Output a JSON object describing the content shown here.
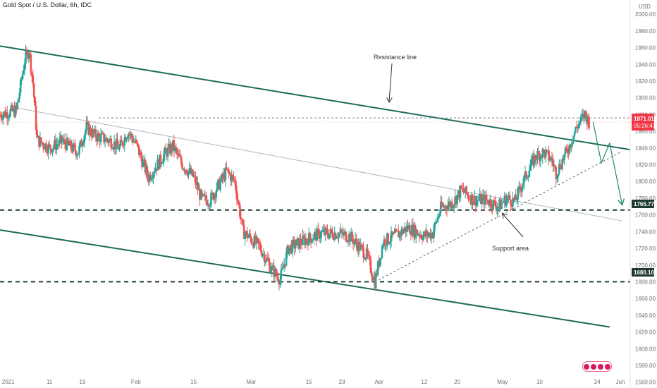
{
  "header": {
    "title": "Gold Spot / U.S. Dollar, 6h, IDC"
  },
  "axis": {
    "currency": "USD",
    "y_ticks": [
      1560,
      1580,
      1600,
      1620,
      1640,
      1660,
      1680,
      1700,
      1720,
      1740,
      1760,
      1780,
      1800,
      1820,
      1840,
      1860,
      1880,
      1900,
      1920,
      1940,
      1960,
      1980,
      2000
    ],
    "x_ticks": [
      "2021",
      "11",
      "19",
      "Feb",
      "15",
      "Mar",
      "15",
      "23",
      "Apr",
      "12",
      "20",
      "May",
      "10",
      "24",
      "Jun"
    ]
  },
  "annotations": {
    "resistance": "Resistance line",
    "support": "Support area"
  },
  "price_labels": {
    "current": "1871.01",
    "countdown": "05:26:41",
    "level1": "1765.77",
    "level2": "1680.10"
  },
  "colors": {
    "bull": "#26a69a",
    "bear": "#ef5350",
    "channel": "#1e6b5c",
    "current": "#f23645",
    "level": "#1e3a2f"
  },
  "chart_data": {
    "type": "candlestick",
    "title": "Gold Spot / U.S. Dollar, 6h, IDC",
    "ylabel": "USD",
    "ylim": [
      1553,
      2017
    ],
    "xlim": [
      "2020-12-30",
      "2021-06-01"
    ],
    "grid": false,
    "series": [
      {
        "name": "price",
        "points": [
          [
            "2020-12-30",
            1880
          ],
          [
            "2021-01-03",
            1885
          ],
          [
            "2021-01-05",
            1945
          ],
          [
            "2021-01-06",
            1958
          ],
          [
            "2021-01-07",
            1918
          ],
          [
            "2021-01-08",
            1850
          ],
          [
            "2021-01-11",
            1840
          ],
          [
            "2021-01-14",
            1848
          ],
          [
            "2021-01-18",
            1835
          ],
          [
            "2021-01-20",
            1865
          ],
          [
            "2021-01-22",
            1855
          ],
          [
            "2021-01-26",
            1848
          ],
          [
            "2021-01-28",
            1840
          ],
          [
            "2021-01-30",
            1860
          ],
          [
            "2021-02-01",
            1845
          ],
          [
            "2021-02-04",
            1805
          ],
          [
            "2021-02-08",
            1833
          ],
          [
            "2021-02-10",
            1842
          ],
          [
            "2021-02-12",
            1822
          ],
          [
            "2021-02-15",
            1805
          ],
          [
            "2021-02-17",
            1778
          ],
          [
            "2021-02-19",
            1778
          ],
          [
            "2021-02-23",
            1812
          ],
          [
            "2021-02-25",
            1800
          ],
          [
            "2021-02-27",
            1740
          ],
          [
            "2021-03-03",
            1722
          ],
          [
            "2021-03-06",
            1695
          ],
          [
            "2021-03-08",
            1683
          ],
          [
            "2021-03-10",
            1720
          ],
          [
            "2021-03-12",
            1725
          ],
          [
            "2021-03-15",
            1732
          ],
          [
            "2021-03-18",
            1738
          ],
          [
            "2021-03-22",
            1738
          ],
          [
            "2021-03-25",
            1734
          ],
          [
            "2021-03-29",
            1712
          ],
          [
            "2021-03-31",
            1680
          ],
          [
            "2021-04-02",
            1728
          ],
          [
            "2021-04-05",
            1735
          ],
          [
            "2021-04-08",
            1745
          ],
          [
            "2021-04-12",
            1735
          ],
          [
            "2021-04-14",
            1738
          ],
          [
            "2021-04-16",
            1768
          ],
          [
            "2021-04-19",
            1775
          ],
          [
            "2021-04-21",
            1790
          ],
          [
            "2021-04-24",
            1778
          ],
          [
            "2021-04-27",
            1778
          ],
          [
            "2021-04-30",
            1770
          ],
          [
            "2021-05-02",
            1780
          ],
          [
            "2021-05-04",
            1776
          ],
          [
            "2021-05-06",
            1800
          ],
          [
            "2021-05-09",
            1830
          ],
          [
            "2021-05-11",
            1835
          ],
          [
            "2021-05-13",
            1825
          ],
          [
            "2021-05-14",
            1810
          ],
          [
            "2021-05-17",
            1840
          ],
          [
            "2021-05-19",
            1865
          ],
          [
            "2021-05-21",
            1880
          ],
          [
            "2021-05-22",
            1871
          ]
        ]
      },
      {
        "name": "resistance channel top",
        "points": [
          [
            "2020-12-30",
            1962
          ],
          [
            "2021-06-01",
            1838
          ]
        ]
      },
      {
        "name": "channel bottom",
        "points": [
          [
            "2020-12-30",
            1742
          ],
          [
            "2021-05-27",
            1626
          ]
        ]
      },
      {
        "name": "mid channel",
        "points": [
          [
            "2021-01-03",
            1888
          ],
          [
            "2021-05-30",
            1753
          ]
        ]
      },
      {
        "name": "support trend",
        "points": [
          [
            "2021-03-31",
            1680
          ],
          [
            "2021-05-30",
            1836
          ]
        ]
      }
    ],
    "horizontal_levels": [
      1765.77,
      1680.1,
      1871.01
    ],
    "projection_arrows": [
      [
        [
          "2021-05-23",
          1871
        ],
        [
          "2021-05-25",
          1822
        ],
        [
          "2021-05-27",
          1846
        ]
      ],
      [
        [
          "2021-05-27",
          1846
        ],
        [
          "2021-05-30",
          1773
        ]
      ]
    ]
  }
}
